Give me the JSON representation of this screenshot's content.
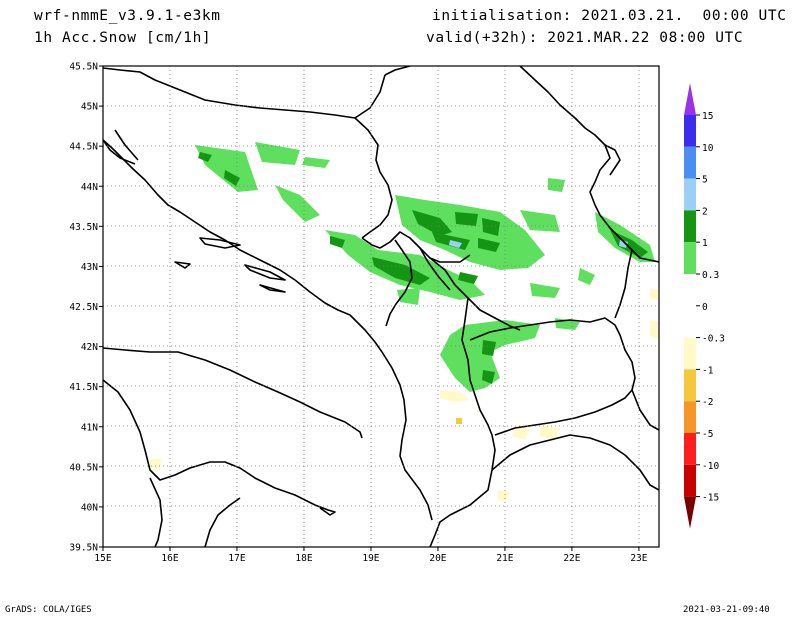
{
  "header": {
    "model": "wrf-nmmE_v3.9.1-e3km",
    "variable": "1h Acc.Snow [cm/1h]",
    "initialisation": "initialisation: 2021.03.21.  00:00 UTC",
    "valid": "valid(+32h): 2021.MAR.22 08:00 UTC"
  },
  "footer": {
    "credit": "GrADS: COLA/IGES",
    "timestamp": "2021-03-21-09:40"
  },
  "axes": {
    "lon_labels": [
      "15E",
      "16E",
      "17E",
      "18E",
      "19E",
      "20E",
      "21E",
      "22E",
      "23E"
    ],
    "lat_labels": [
      "45.5N",
      "45N",
      "44.5N",
      "44N",
      "43.5N",
      "43N",
      "42.5N",
      "42N",
      "41.5N",
      "41N",
      "40.5N",
      "40N",
      "39.5N"
    ],
    "lon_range": [
      15,
      23.3
    ],
    "lat_range": [
      39.5,
      45.5
    ],
    "grid": "dotted"
  },
  "colorbar": {
    "position": "right",
    "labels": [
      "15",
      "10",
      "5",
      "2",
      "1",
      "0.3",
      "0",
      "-0.3",
      "-1",
      "-2",
      "-5",
      "-10",
      "-15"
    ],
    "colors": [
      "#3b2cf0",
      "#4a8ef2",
      "#9ccff5",
      "#149614",
      "#5ee05e",
      "#ffffff",
      "#ffffff",
      "#fffac8",
      "#f5c83c",
      "#f59628",
      "#ff1e1e",
      "#c80000",
      "#8c0000"
    ],
    "top_arrow_color": "#9a32e8",
    "bottom_arrow_color": "#780000"
  }
}
